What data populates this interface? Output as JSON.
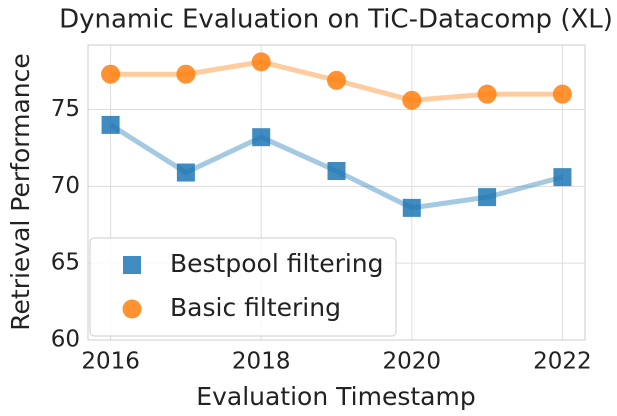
{
  "chart_data": {
    "type": "line",
    "title": "Dynamic Evaluation on TiC-Datacomp (XL)",
    "xlabel": "Evaluation Timestamp",
    "ylabel": "Retrieval Performance",
    "x": [
      2016,
      2017,
      2018,
      2019,
      2020,
      2021,
      2022
    ],
    "series": [
      {
        "name": "Bestpool filtering",
        "color": "#1f77b4",
        "marker": "square",
        "values": [
          74.0,
          70.9,
          73.2,
          71.0,
          68.6,
          69.3,
          70.6
        ]
      },
      {
        "name": "Basic filtering",
        "color": "#ff7f0e",
        "marker": "circle",
        "values": [
          77.3,
          77.3,
          78.1,
          76.9,
          75.6,
          76.0,
          76.0
        ]
      }
    ],
    "xlim": [
      2015.7,
      2022.3
    ],
    "xticks": [
      2016,
      2018,
      2020,
      2022
    ],
    "ylim": [
      60,
      79.2
    ],
    "yticks": [
      60,
      65,
      70,
      75
    ],
    "grid": true,
    "legend": "lower left"
  }
}
